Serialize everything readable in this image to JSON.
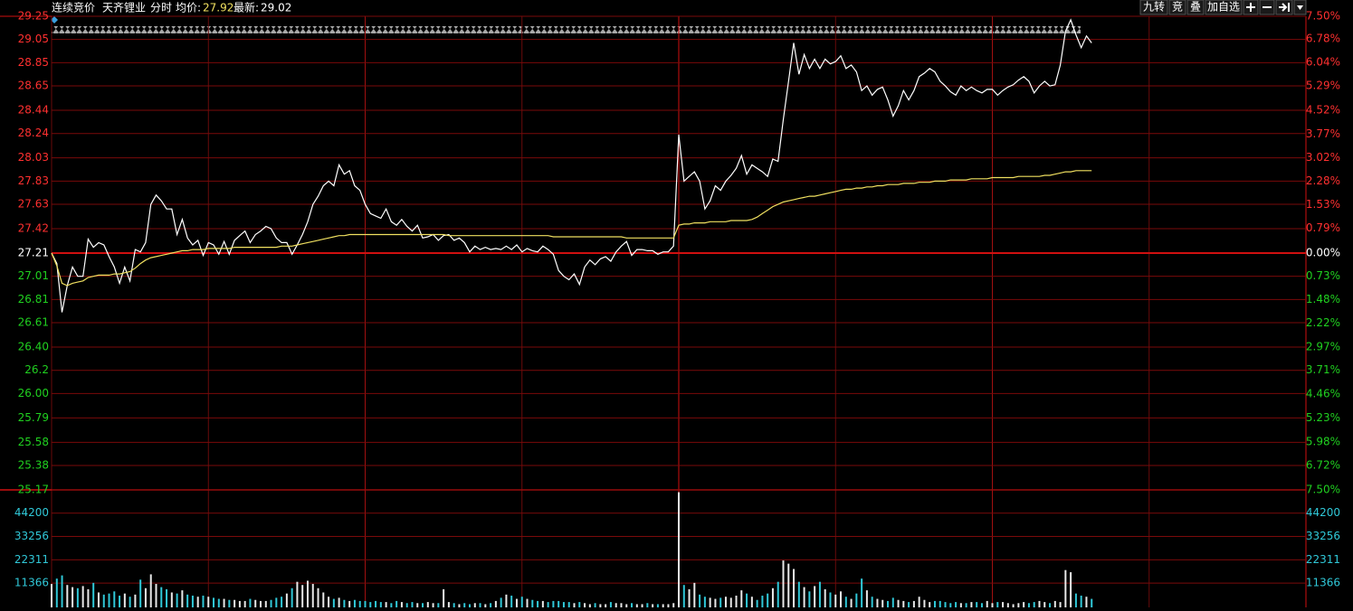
{
  "header": {
    "mode": "连续竞价",
    "stock": "天齐锂业",
    "view": "分时",
    "avg_label": "均价:",
    "avg_price": 27.92,
    "latest_label": "最新:",
    "latest_price": 29.02
  },
  "toolbar": {
    "buttons": [
      "九转",
      "竞",
      "叠",
      "加自选"
    ]
  },
  "chart_data": [
    {
      "type": "line",
      "xlim": [
        0,
        240
      ],
      "ylim": [
        25.17,
        29.25
      ],
      "yticks": [
        29.25,
        29.05,
        28.85,
        28.65,
        28.44,
        28.24,
        28.03,
        27.83,
        27.63,
        27.42,
        27.21,
        27.01,
        26.81,
        26.61,
        {
          "value": 26.4,
          "label": "26.40"
        },
        26.2,
        {
          "value": 26,
          "label": "26.00"
        },
        25.79,
        25.58,
        25.38,
        25.17
      ],
      "y2lim": [
        -7.5,
        7.5
      ],
      "y2ticks": [
        {
          "value": 7.5,
          "label": "7.50%"
        },
        {
          "value": 6.78,
          "label": "6.78%"
        },
        {
          "value": 6.04,
          "label": "6.04%"
        },
        {
          "value": 5.29,
          "label": "5.29%"
        },
        {
          "value": 4.52,
          "label": "4.52%"
        },
        {
          "value": 3.77,
          "label": "3.77%"
        },
        {
          "value": 3.02,
          "label": "3.02%"
        },
        {
          "value": 2.28,
          "label": "2.28%"
        },
        {
          "value": 1.53,
          "label": "1.53%"
        },
        {
          "value": 0.79,
          "label": "0.79%"
        },
        {
          "value": 0,
          "label": "0.00%"
        },
        {
          "value": -0.73,
          "label": "0.73%"
        },
        {
          "value": -1.48,
          "label": "1.48%"
        },
        {
          "value": -2.22,
          "label": "2.22%"
        },
        {
          "value": -2.97,
          "label": "2.97%"
        },
        {
          "value": -3.71,
          "label": "3.71%"
        },
        {
          "value": -4.46,
          "label": "4.46%"
        },
        {
          "value": -5.23,
          "label": "5.23%"
        },
        {
          "value": -5.98,
          "label": "5.98%"
        },
        {
          "value": -6.72,
          "label": "6.72%"
        },
        {
          "value": -7.5,
          "label": "7.50%"
        }
      ],
      "grid": true,
      "series": [
        {
          "color": "#ffffff",
          "values": [
            27.21,
            27.12,
            26.7,
            26.93,
            27.09,
            27.01,
            27.01,
            27.33,
            27.26,
            27.3,
            27.28,
            27.18,
            27.09,
            26.95,
            27.09,
            26.97,
            27.24,
            27.22,
            27.3,
            27.63,
            27.71,
            27.66,
            27.59,
            27.59,
            27.37,
            27.5,
            27.34,
            27.28,
            27.32,
            27.19,
            27.3,
            27.28,
            27.2,
            27.31,
            27.2,
            27.32,
            27.36,
            27.4,
            27.3,
            27.37,
            27.4,
            27.44,
            27.42,
            27.34,
            27.3,
            27.3,
            27.2,
            27.28,
            27.37,
            27.48,
            27.63,
            27.7,
            27.79,
            27.83,
            27.79,
            27.97,
            27.89,
            27.92,
            27.79,
            27.75,
            27.63,
            27.55,
            27.53,
            27.51,
            27.59,
            27.48,
            27.45,
            27.5,
            27.44,
            27.4,
            27.45,
            27.34,
            27.35,
            27.37,
            27.32,
            27.36,
            27.37,
            27.32,
            27.34,
            27.3,
            27.22,
            27.27,
            27.24,
            27.26,
            27.24,
            27.25,
            27.24,
            27.27,
            27.24,
            27.28,
            27.22,
            27.25,
            27.23,
            27.22,
            27.27,
            27.24,
            27.2,
            27.06,
            27.01,
            26.98,
            27.03,
            26.94,
            27.09,
            27.15,
            27.11,
            27.16,
            27.18,
            27.14,
            27.22,
            27.27,
            27.31,
            27.19,
            27.24,
            27.24,
            27.23,
            27.23,
            27.2,
            27.22,
            27.22,
            27.27,
            28.23,
            27.83,
            27.87,
            27.91,
            27.83,
            27.59,
            27.66,
            27.79,
            27.75,
            27.83,
            27.88,
            27.94,
            28.05,
            27.89,
            27.97,
            27.94,
            27.91,
            27.87,
            28.02,
            28.0,
            28.36,
            28.69,
            29.02,
            28.75,
            28.92,
            28.8,
            28.88,
            28.8,
            28.88,
            28.84,
            28.86,
            28.91,
            28.8,
            28.83,
            28.77,
            28.61,
            28.65,
            28.57,
            28.62,
            28.64,
            28.53,
            28.39,
            28.48,
            28.61,
            28.53,
            28.61,
            28.73,
            28.76,
            28.8,
            28.77,
            28.69,
            28.65,
            28.6,
            28.57,
            28.65,
            28.61,
            28.64,
            28.61,
            28.59,
            28.62,
            28.62,
            28.57,
            28.61,
            28.64,
            28.66,
            28.7,
            28.73,
            28.69,
            28.59,
            28.65,
            28.69,
            28.65,
            28.66,
            28.83,
            29.12,
            29.22,
            29.09,
            28.98,
            29.08,
            29.02
          ]
        },
        {
          "color": "#f0e060",
          "values": [
            27.21,
            27.1,
            26.95,
            26.93,
            26.95,
            26.96,
            26.97,
            27.0,
            27.01,
            27.02,
            27.02,
            27.02,
            27.03,
            27.03,
            27.04,
            27.05,
            27.08,
            27.12,
            27.15,
            27.17,
            27.18,
            27.19,
            27.2,
            27.21,
            27.22,
            27.23,
            27.23,
            27.24,
            27.24,
            27.24,
            27.25,
            27.25,
            27.25,
            27.25,
            27.25,
            27.26,
            27.26,
            27.26,
            27.26,
            27.26,
            27.26,
            27.26,
            27.26,
            27.26,
            27.27,
            27.27,
            27.27,
            27.28,
            27.29,
            27.3,
            27.31,
            27.32,
            27.33,
            27.34,
            27.35,
            27.36,
            27.36,
            27.37,
            27.37,
            27.37,
            27.37,
            27.37,
            27.37,
            27.37,
            27.37,
            27.37,
            27.37,
            27.37,
            27.37,
            27.37,
            27.37,
            27.37,
            27.37,
            27.37,
            27.37,
            27.37,
            27.36,
            27.36,
            27.36,
            27.36,
            27.36,
            27.36,
            27.36,
            27.36,
            27.36,
            27.36,
            27.36,
            27.36,
            27.36,
            27.36,
            27.36,
            27.36,
            27.36,
            27.36,
            27.36,
            27.36,
            27.35,
            27.35,
            27.35,
            27.35,
            27.35,
            27.35,
            27.35,
            27.35,
            27.35,
            27.35,
            27.35,
            27.35,
            27.35,
            27.35,
            27.34,
            27.34,
            27.34,
            27.34,
            27.34,
            27.34,
            27.34,
            27.34,
            27.34,
            27.34,
            27.45,
            27.46,
            27.46,
            27.47,
            27.47,
            27.47,
            27.48,
            27.48,
            27.48,
            27.48,
            27.49,
            27.49,
            27.49,
            27.49,
            27.5,
            27.52,
            27.55,
            27.58,
            27.61,
            27.63,
            27.65,
            27.66,
            27.67,
            27.68,
            27.69,
            27.7,
            27.7,
            27.71,
            27.72,
            27.73,
            27.74,
            27.75,
            27.76,
            27.76,
            27.77,
            27.77,
            27.78,
            27.78,
            27.79,
            27.79,
            27.8,
            27.8,
            27.8,
            27.81,
            27.81,
            27.81,
            27.82,
            27.82,
            27.82,
            27.83,
            27.83,
            27.83,
            27.84,
            27.84,
            27.84,
            27.84,
            27.85,
            27.85,
            27.85,
            27.85,
            27.86,
            27.86,
            27.86,
            27.86,
            27.86,
            27.87,
            27.87,
            27.87,
            27.87,
            27.87,
            27.88,
            27.88,
            27.89,
            27.9,
            27.91,
            27.91,
            27.92,
            27.92,
            27.92,
            27.92
          ]
        }
      ]
    },
    {
      "type": "bar",
      "xlim": [
        0,
        240
      ],
      "ylim": [
        0,
        55100
      ],
      "yticks": [
        44200,
        33256,
        22311,
        11366
      ],
      "grid": true,
      "color": "#e8e8e8",
      "down_color": "#30c8d8",
      "values": [
        11000,
        13500,
        15000,
        10500,
        9500,
        9000,
        10000,
        8500,
        11500,
        7000,
        6000,
        6500,
        7500,
        5500,
        6500,
        5000,
        6000,
        13000,
        9000,
        15500,
        11000,
        9500,
        8500,
        7000,
        6500,
        8000,
        6000,
        5500,
        5000,
        5500,
        5000,
        4500,
        4000,
        4000,
        3500,
        3500,
        3000,
        3000,
        4000,
        3500,
        3000,
        3000,
        3500,
        4500,
        5000,
        6500,
        9000,
        12000,
        10500,
        12500,
        11000,
        9000,
        7000,
        5000,
        4000,
        4500,
        3500,
        3000,
        3500,
        3000,
        3000,
        2500,
        3000,
        2500,
        2500,
        2000,
        3000,
        2500,
        2000,
        2500,
        2000,
        2000,
        2500,
        2000,
        2000,
        8500,
        2500,
        2000,
        1500,
        2000,
        1500,
        2000,
        2000,
        1500,
        2000,
        3000,
        4500,
        6000,
        5500,
        4000,
        5000,
        4000,
        3500,
        3000,
        3000,
        2500,
        3000,
        3000,
        2500,
        2500,
        2000,
        2500,
        2000,
        1500,
        2000,
        1500,
        1500,
        2500,
        2000,
        2000,
        1500,
        2000,
        1500,
        1500,
        2000,
        1500,
        1500,
        1500,
        1500,
        2000,
        54000,
        10500,
        8500,
        11500,
        6000,
        5000,
        4500,
        4000,
        4500,
        5000,
        4500,
        5500,
        8000,
        6500,
        5000,
        3500,
        5500,
        6500,
        9000,
        12000,
        22000,
        20500,
        18000,
        12000,
        9500,
        7500,
        10000,
        12000,
        8500,
        7000,
        6000,
        7500,
        5000,
        4000,
        6500,
        13500,
        8000,
        5000,
        4000,
        3500,
        3000,
        4500,
        3500,
        3000,
        2500,
        3000,
        5000,
        3500,
        2500,
        3000,
        3000,
        2500,
        2000,
        2500,
        2000,
        2000,
        2500,
        2500,
        2000,
        3000,
        2000,
        2500,
        2500,
        2000,
        1500,
        2000,
        2500,
        2000,
        2500,
        3000,
        2500,
        2000,
        3000,
        2500,
        17500,
        16500,
        6500,
        5500,
        5000,
        4000
      ]
    }
  ]
}
